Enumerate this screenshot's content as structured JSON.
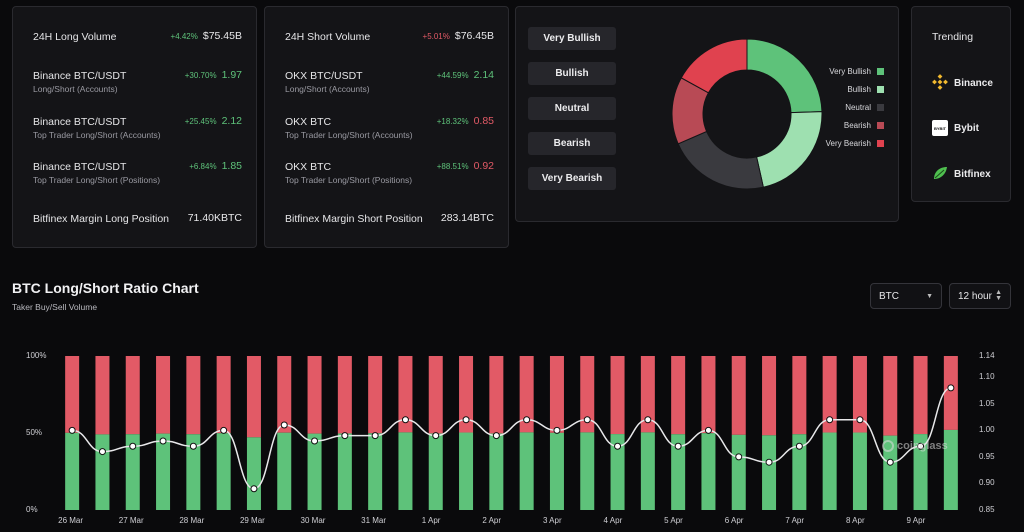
{
  "long_card": {
    "rows": [
      {
        "name": "24H Long Volume",
        "sub": "",
        "pct": "+4.42%",
        "pct_dir": "pos",
        "value": "$75.45B",
        "value_color": ""
      },
      {
        "name": "Binance BTC/USDT",
        "sub": "Long/Short (Accounts)",
        "pct": "+30.70%",
        "pct_dir": "pos",
        "value": "1.97",
        "value_color": "green"
      },
      {
        "name": "Binance BTC/USDT",
        "sub": "Top Trader Long/Short (Accounts)",
        "pct": "+25.45%",
        "pct_dir": "pos",
        "value": "2.12",
        "value_color": "green"
      },
      {
        "name": "Binance BTC/USDT",
        "sub": "Top Trader Long/Short (Positions)",
        "pct": "+6.84%",
        "pct_dir": "pos",
        "value": "1.85",
        "value_color": "green"
      },
      {
        "name": "Bitfinex Margin Long Position",
        "sub": "",
        "pct": "",
        "pct_dir": "",
        "value": "71.40KBTC",
        "value_color": ""
      }
    ]
  },
  "short_card": {
    "rows": [
      {
        "name": "24H Short Volume",
        "sub": "",
        "pct": "+5.01%",
        "pct_dir": "neg",
        "value": "$76.45B",
        "value_color": ""
      },
      {
        "name": "OKX BTC/USDT",
        "sub": "Long/Short (Accounts)",
        "pct": "+44.59%",
        "pct_dir": "pos",
        "value": "2.14",
        "value_color": "green"
      },
      {
        "name": "OKX BTC",
        "sub": "Top Trader Long/Short (Accounts)",
        "pct": "+18.32%",
        "pct_dir": "pos",
        "value": "0.85",
        "value_color": "red"
      },
      {
        "name": "OKX BTC",
        "sub": "Top Trader Long/Short (Positions)",
        "pct": "+88.51%",
        "pct_dir": "pos",
        "value": "0.92",
        "value_color": "red"
      },
      {
        "name": "Bitfinex Margin Short Position",
        "sub": "",
        "pct": "",
        "pct_dir": "",
        "value": "283.14BTC",
        "value_color": ""
      }
    ]
  },
  "sentiment": {
    "buttons": [
      "Very Bullish",
      "Bullish",
      "Neutral",
      "Bearish",
      "Very Bearish"
    ],
    "legend": [
      {
        "label": "Very Bullish",
        "color": "#5ec27a"
      },
      {
        "label": "Bullish",
        "color": "#9ee0b0"
      },
      {
        "label": "Neutral",
        "color": "#3a3a3f"
      },
      {
        "label": "Bearish",
        "color": "#b84a55"
      },
      {
        "label": "Very Bearish",
        "color": "#e0424f"
      }
    ],
    "donut_shares": [
      0.245,
      0.22,
      0.22,
      0.145,
      0.17
    ]
  },
  "trending": {
    "title": "Trending",
    "items": [
      "Binance",
      "Bybit",
      "Bitfinex"
    ],
    "bybit_logo_text": "BYBIT"
  },
  "chart_section": {
    "title": "BTC Long/Short Ratio Chart",
    "subtitle": "Taker Buy/Sell Volume",
    "coin_select": "BTC",
    "interval_select": "12 hour",
    "watermark": "coinglass"
  },
  "colors": {
    "long": "#5ec27a",
    "short": "#e25a66"
  },
  "chart_data": {
    "type": "bar",
    "stacked": true,
    "left_axis": {
      "ticks": [
        "100%",
        "50%",
        "0%"
      ],
      "range": [
        0,
        100
      ]
    },
    "right_axis": {
      "ticks": [
        "1.14",
        "1.10",
        "1.05",
        "1.00",
        "0.95",
        "0.90",
        "0.85"
      ],
      "range": [
        0.85,
        1.14
      ]
    },
    "x_labels": [
      "26 Mar",
      "27 Mar",
      "28 Mar",
      "29 Mar",
      "30 Mar",
      "31 Mar",
      "1 Apr",
      "2 Apr",
      "3 Apr",
      "4 Apr",
      "5 Apr",
      "6 Apr",
      "7 Apr",
      "8 Apr",
      "9 Apr"
    ],
    "long_pct": [
      50.1,
      49.1,
      49.2,
      49.6,
      49.2,
      49.9,
      47.2,
      50.2,
      49.6,
      49.7,
      49.8,
      50.4,
      49.7,
      50.3,
      49.7,
      50.4,
      50.1,
      50.4,
      49.3,
      50.4,
      49.2,
      49.9,
      48.8,
      48.5,
      49.2,
      50.3,
      50.3,
      48.3,
      49.3,
      52.0
    ],
    "ratio": [
      1.0,
      0.96,
      0.97,
      0.98,
      0.97,
      1.0,
      0.89,
      1.01,
      0.98,
      0.99,
      0.99,
      1.02,
      0.99,
      1.02,
      0.99,
      1.02,
      1.0,
      1.02,
      0.97,
      1.02,
      0.97,
      1.0,
      0.95,
      0.94,
      0.97,
      1.02,
      1.02,
      0.94,
      0.97,
      1.08
    ]
  }
}
